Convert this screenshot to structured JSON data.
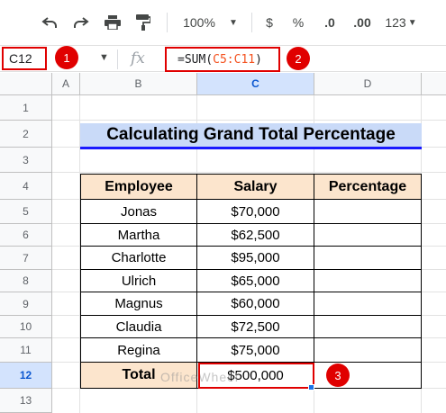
{
  "toolbar": {
    "zoom": "100%",
    "currency": "$",
    "percent": "%",
    "decrease_decimal": ".0",
    "increase_decimal": ".00",
    "more_formats": "123"
  },
  "formula_bar": {
    "name_box": "C12",
    "fx": "fx",
    "formula_prefix": "=SUM(",
    "formula_range": "C5:C11",
    "formula_suffix": ")"
  },
  "annotations": [
    "1",
    "2",
    "3"
  ],
  "columns": [
    "A",
    "B",
    "C",
    "D"
  ],
  "rows": [
    "1",
    "2",
    "3",
    "4",
    "5",
    "6",
    "7",
    "8",
    "9",
    "10",
    "11",
    "12",
    "13"
  ],
  "sheet": {
    "title": "Calculating Grand Total Percentage",
    "headers": [
      "Employee",
      "Salary",
      "Percentage"
    ],
    "data": [
      {
        "employee": "Jonas",
        "salary": "$70,000"
      },
      {
        "employee": "Martha",
        "salary": "$62,500"
      },
      {
        "employee": "Charlotte",
        "salary": "$95,000"
      },
      {
        "employee": "Ulrich",
        "salary": "$65,000"
      },
      {
        "employee": "Magnus",
        "salary": "$60,000"
      },
      {
        "employee": "Claudia",
        "salary": "$72,500"
      },
      {
        "employee": "Regina",
        "salary": "$75,000"
      }
    ],
    "total_label": "Total",
    "total_value": "$500,000"
  },
  "watermark": "OfficeWheel",
  "colors": {
    "title_fill": "#c9daf8",
    "header_fill": "#fce5cd",
    "highlight": "#e00000"
  }
}
